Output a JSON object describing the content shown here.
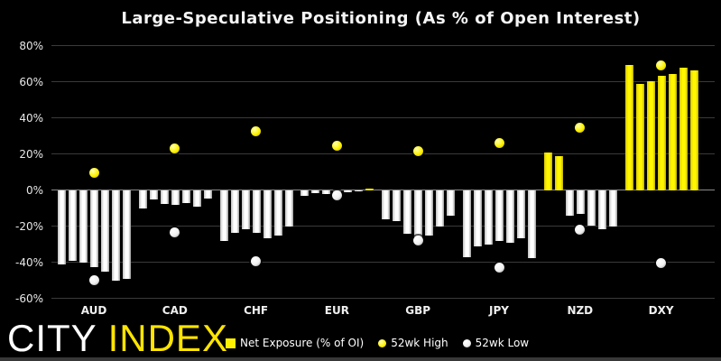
{
  "chart_data": {
    "type": "bar",
    "title": "Large-Speculative Positioning (As % of Open Interest)",
    "categories": [
      "AUD",
      "CAD",
      "CHF",
      "EUR",
      "GBP",
      "JPY",
      "NZD",
      "DXY"
    ],
    "series": [
      {
        "name": "Net Exposure (% of OI)",
        "type": "bar",
        "values_by_category": [
          [
            -41,
            -39,
            -40,
            -42.5,
            -45,
            -50,
            -49
          ],
          [
            -10,
            -5,
            -7.5,
            -8,
            -7,
            -9,
            -4.5
          ],
          [
            -28,
            -23.5,
            -21.5,
            -23.5,
            -26.5,
            -25,
            -20
          ],
          [
            -3,
            -1.5,
            -2,
            -1.5,
            -1,
            -0.5,
            1
          ],
          [
            -16,
            -17,
            -24,
            -26,
            -25,
            -20,
            -14
          ],
          [
            -37,
            -31,
            -30,
            -28,
            -29,
            -26.5,
            -37.5
          ],
          [
            21,
            19,
            -14,
            -13,
            -19.5,
            -21.5,
            -20
          ],
          [
            69.5,
            59,
            60.5,
            63.5,
            64.5,
            68,
            66.5
          ]
        ]
      },
      {
        "name": "52wk High",
        "type": "point",
        "values": [
          9.5,
          23,
          32.5,
          24.5,
          21.5,
          26,
          34.5,
          69
        ]
      },
      {
        "name": "52wk Low",
        "type": "point",
        "values": [
          -50,
          -23.5,
          -39.5,
          -3,
          -28,
          -43,
          -22,
          -40.5
        ]
      }
    ],
    "ylim": [
      -60,
      80
    ],
    "yticks": [
      80,
      60,
      40,
      20,
      0,
      -20,
      -40,
      -60
    ],
    "ytick_suffix": "%",
    "grid": "horizontal",
    "legend_position": "bottom",
    "bar_color_rule": "positive bars yellow, negative bars white"
  },
  "logo": {
    "part1": "CITY",
    "part2": "INDEX"
  },
  "colors": {
    "background": "#000000",
    "positive_bar": "#FFF100",
    "negative_bar": "#F2F2F2",
    "high_dot": "#FEF200",
    "low_dot": "#FFFFFF",
    "gridline": "#3A3A3A",
    "zero_line": "#8A8A8A",
    "text": "#FFFFFF",
    "logo_index": "#FFE400"
  }
}
